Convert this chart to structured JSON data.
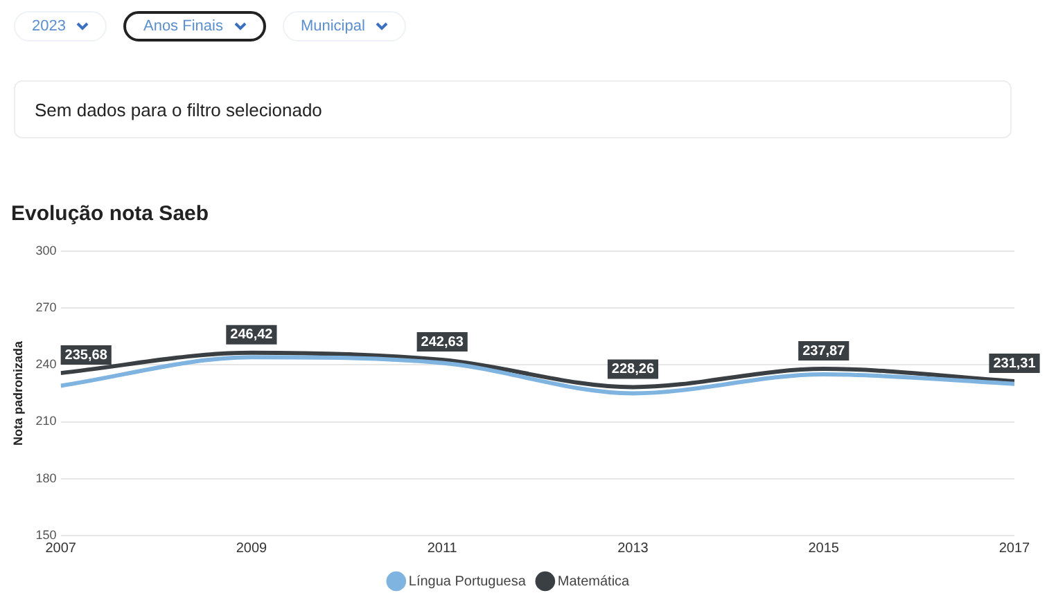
{
  "chart_data": {
    "type": "line",
    "title": "Evolução nota Saeb",
    "ylabel": "Nota padronizada",
    "annotations": [
      "2023",
      "Anos Finais",
      "Municipal",
      "Sem dados para o filtro selecionado"
    ],
    "x": [
      2007,
      2009,
      2011,
      2013,
      2015,
      2017
    ],
    "xlim": [
      2007,
      2017
    ],
    "xticks": [
      2007,
      2009,
      2011,
      2013,
      2015,
      2017
    ],
    "ylim": [
      150,
      300
    ],
    "yticks": [
      150,
      180,
      210,
      240,
      270,
      300
    ],
    "series": [
      {
        "name": "Língua Portuguesa",
        "color": "#7fb3e0",
        "values": [
          229,
          244,
          241,
          225,
          235,
          230
        ]
      },
      {
        "name": "Matemática",
        "color": "#3a3f44",
        "values": [
          235.68,
          246.42,
          242.63,
          228.26,
          237.87,
          231.31
        ],
        "value_labels": [
          "235,68",
          "246,42",
          "242,63",
          "228,26",
          "237,87",
          "231,31"
        ]
      }
    ],
    "grid": "y",
    "legend": "bottom",
    "marker": "none",
    "line_style": "solid"
  }
}
